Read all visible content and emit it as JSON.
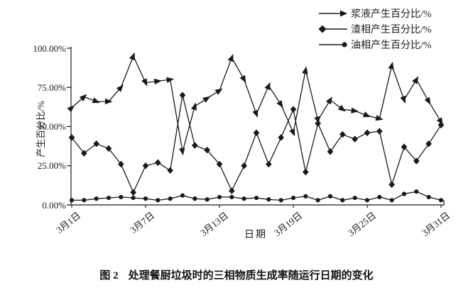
{
  "figure_caption": {
    "prefix": "图 2",
    "text": "处理餐厨垃圾时的三相物质生成率随运行日期的变化"
  },
  "chart_data": {
    "type": "line",
    "title": "",
    "xlabel": "日期",
    "ylabel": "产生百分比/%",
    "ylim": [
      0,
      100
    ],
    "grid": false,
    "legend_position": "top-right",
    "line_color": "#1a1a1a",
    "x_days": [
      1,
      2,
      3,
      4,
      5,
      6,
      7,
      8,
      9,
      10,
      11,
      12,
      13,
      14,
      15,
      16,
      17,
      18,
      19,
      20,
      21,
      22,
      23,
      24,
      25,
      26,
      27,
      28,
      29,
      30,
      31
    ],
    "x_tick_days": [
      1,
      7,
      13,
      19,
      25,
      31
    ],
    "x_tick_labels": [
      "3月1日",
      "3月7日",
      "3月13日",
      "3月19日",
      "3月25日",
      "3月31日"
    ],
    "y_ticks": [
      0,
      25,
      50,
      75,
      100
    ],
    "y_tick_labels": [
      "0.00%",
      "25.00%",
      "50.00%",
      "75.00%",
      "100.00%"
    ],
    "series": [
      {
        "name": "浆液产生百分比/%",
        "marker": "arrow",
        "values": [
          62,
          69,
          66,
          66,
          75,
          95,
          78,
          79,
          80,
          34,
          63,
          68,
          73,
          94,
          80,
          58,
          76,
          64,
          46,
          86,
          54,
          67,
          61,
          60,
          57,
          55,
          89,
          67,
          80,
          66,
          53
        ]
      },
      {
        "name": "渣相产生百分比/%",
        "marker": "diamond",
        "values": [
          43,
          33,
          39,
          36,
          26,
          8,
          25,
          27,
          22,
          70,
          38,
          35,
          26,
          9,
          25,
          46,
          26,
          43,
          61,
          21,
          52,
          34,
          45,
          42,
          46,
          47,
          13,
          37,
          28,
          39,
          51
        ]
      },
      {
        "name": "油相产生百分比/%",
        "marker": "circle",
        "values": [
          3,
          3,
          4,
          4.5,
          5,
          4.5,
          4,
          3,
          4,
          6,
          4,
          3.5,
          5,
          5,
          4,
          4.5,
          3.5,
          3,
          4.5,
          5.5,
          3,
          5.5,
          3,
          4.5,
          3,
          5,
          3,
          7,
          8.5,
          5,
          3
        ]
      }
    ]
  }
}
